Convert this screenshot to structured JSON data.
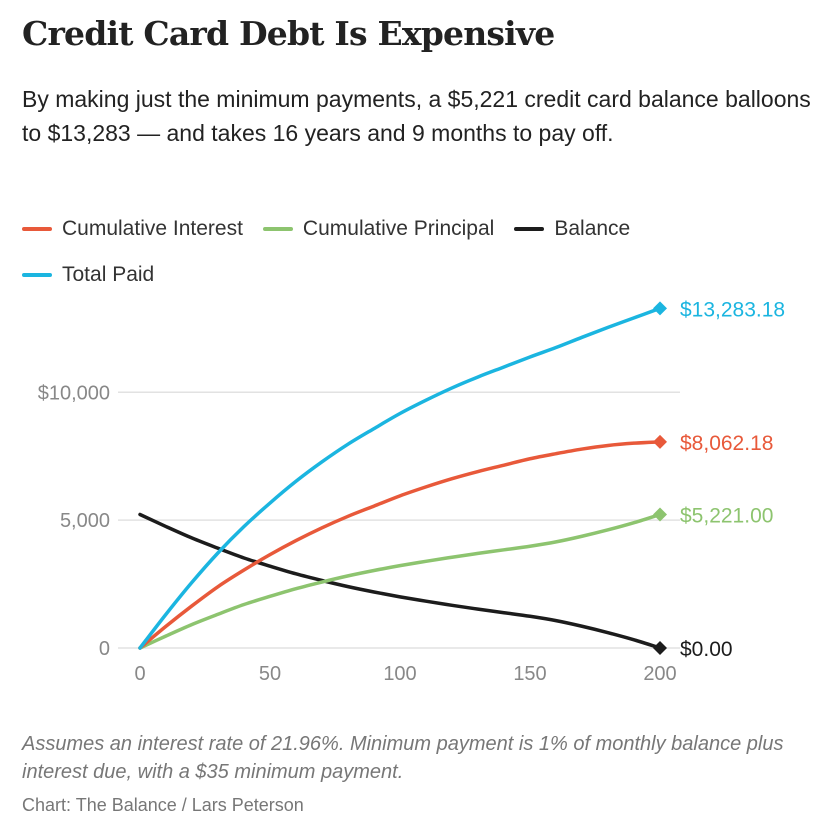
{
  "header": {
    "title": "Credit Card Debt Is Expensive",
    "subtitle": "By making just the minimum payments, a $5,221 credit card balance balloons to $13,283 — and takes 16 years and 9 months to pay off."
  },
  "footer": {
    "note": "Assumes an interest rate of 21.96%. Minimum payment is 1% of monthly balance plus interest due, with a $35 minimum payment.",
    "source": "Chart: The Balance / Lars Peterson"
  },
  "chart_data": {
    "type": "line",
    "xlim": [
      0,
      200
    ],
    "ylim": [
      0,
      14000
    ],
    "x_ticks": [
      {
        "value": 0,
        "label": "0"
      },
      {
        "value": 50,
        "label": "50"
      },
      {
        "value": 100,
        "label": "100"
      },
      {
        "value": 150,
        "label": "150"
      },
      {
        "value": 200,
        "label": "200"
      }
    ],
    "y_ticks": [
      {
        "value": 0,
        "label": "0"
      },
      {
        "value": 5000,
        "label": "5,000"
      },
      {
        "value": 10000,
        "label": "$10,000"
      }
    ],
    "grid": "horizontal",
    "legend_position": "top-left",
    "series": [
      {
        "name": "Cumulative Interest",
        "color": "#e8593a",
        "end_label": "$8,062.18",
        "points": [
          [
            0,
            0
          ],
          [
            10,
            850
          ],
          [
            20,
            1650
          ],
          [
            30,
            2400
          ],
          [
            40,
            3050
          ],
          [
            50,
            3650
          ],
          [
            60,
            4200
          ],
          [
            70,
            4700
          ],
          [
            80,
            5150
          ],
          [
            90,
            5550
          ],
          [
            100,
            5950
          ],
          [
            110,
            6300
          ],
          [
            120,
            6620
          ],
          [
            130,
            6900
          ],
          [
            140,
            7150
          ],
          [
            150,
            7400
          ],
          [
            160,
            7600
          ],
          [
            170,
            7780
          ],
          [
            180,
            7920
          ],
          [
            190,
            8010
          ],
          [
            200,
            8062.18
          ]
        ]
      },
      {
        "name": "Cumulative Principal",
        "color": "#8dc46f",
        "end_label": "$5,221.00",
        "points": [
          [
            0,
            0
          ],
          [
            10,
            470
          ],
          [
            20,
            920
          ],
          [
            30,
            1320
          ],
          [
            40,
            1700
          ],
          [
            50,
            2020
          ],
          [
            60,
            2320
          ],
          [
            70,
            2580
          ],
          [
            80,
            2820
          ],
          [
            90,
            3030
          ],
          [
            100,
            3220
          ],
          [
            110,
            3390
          ],
          [
            120,
            3550
          ],
          [
            130,
            3700
          ],
          [
            140,
            3840
          ],
          [
            150,
            3980
          ],
          [
            160,
            4150
          ],
          [
            170,
            4370
          ],
          [
            180,
            4620
          ],
          [
            190,
            4900
          ],
          [
            200,
            5221
          ]
        ]
      },
      {
        "name": "Balance",
        "color": "#1c1c1c",
        "end_label": "$0.00",
        "points": [
          [
            0,
            5221
          ],
          [
            10,
            4750
          ],
          [
            20,
            4300
          ],
          [
            30,
            3900
          ],
          [
            40,
            3520
          ],
          [
            50,
            3200
          ],
          [
            60,
            2900
          ],
          [
            70,
            2640
          ],
          [
            80,
            2400
          ],
          [
            90,
            2190
          ],
          [
            100,
            2000
          ],
          [
            110,
            1830
          ],
          [
            120,
            1670
          ],
          [
            130,
            1520
          ],
          [
            140,
            1380
          ],
          [
            150,
            1240
          ],
          [
            160,
            1070
          ],
          [
            170,
            850
          ],
          [
            180,
            600
          ],
          [
            190,
            320
          ],
          [
            200,
            0
          ]
        ]
      },
      {
        "name": "Total Paid",
        "color": "#1bb5e0",
        "end_label": "$13,283.18",
        "points": [
          [
            0,
            0
          ],
          [
            10,
            1320
          ],
          [
            20,
            2570
          ],
          [
            30,
            3720
          ],
          [
            40,
            4750
          ],
          [
            50,
            5670
          ],
          [
            60,
            6520
          ],
          [
            70,
            7280
          ],
          [
            80,
            7970
          ],
          [
            90,
            8580
          ],
          [
            100,
            9170
          ],
          [
            110,
            9690
          ],
          [
            120,
            10170
          ],
          [
            130,
            10600
          ],
          [
            140,
            10990
          ],
          [
            150,
            11380
          ],
          [
            160,
            11750
          ],
          [
            170,
            12150
          ],
          [
            180,
            12540
          ],
          [
            190,
            12910
          ],
          [
            200,
            13283.18
          ]
        ]
      }
    ]
  }
}
